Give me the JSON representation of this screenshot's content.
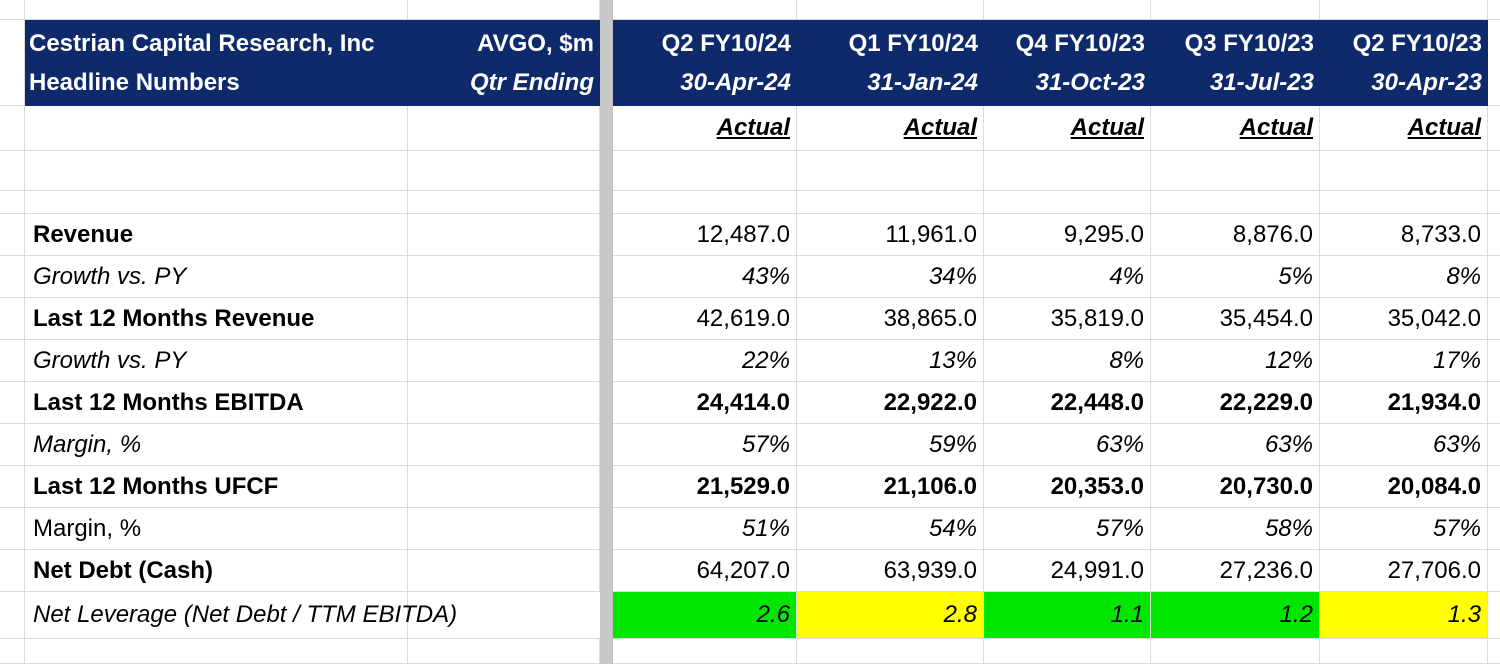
{
  "header": {
    "company": "Cestrian Capital Research, Inc",
    "subtitle": "Headline Numbers",
    "ticker": "AVGO, $m",
    "qtr_ending": "Qtr Ending"
  },
  "columns": [
    {
      "quarter": "Q2 FY10/24",
      "date": "30-Apr-24",
      "status": "Actual"
    },
    {
      "quarter": "Q1 FY10/24",
      "date": "31-Jan-24",
      "status": "Actual"
    },
    {
      "quarter": "Q4 FY10/23",
      "date": "31-Oct-23",
      "status": "Actual"
    },
    {
      "quarter": "Q3 FY10/23",
      "date": "31-Jul-23",
      "status": "Actual"
    },
    {
      "quarter": "Q2 FY10/23",
      "date": "30-Apr-23",
      "status": "Actual"
    }
  ],
  "rows": [
    {
      "label": "Revenue",
      "values": [
        "12,487.0",
        "11,961.0",
        "9,295.0",
        "8,876.0",
        "8,733.0"
      ]
    },
    {
      "label": "Growth vs. PY",
      "values": [
        "43%",
        "34%",
        "4%",
        "5%",
        "8%"
      ]
    },
    {
      "label": "Last 12 Months Revenue",
      "values": [
        "42,619.0",
        "38,865.0",
        "35,819.0",
        "35,454.0",
        "35,042.0"
      ]
    },
    {
      "label": "Growth vs. PY",
      "values": [
        "22%",
        "13%",
        "8%",
        "12%",
        "17%"
      ]
    },
    {
      "label": "Last 12 Months EBITDA",
      "values": [
        "24,414.0",
        "22,922.0",
        "22,448.0",
        "22,229.0",
        "21,934.0"
      ]
    },
    {
      "label": "Margin, %",
      "values": [
        "57%",
        "59%",
        "63%",
        "63%",
        "63%"
      ]
    },
    {
      "label": "Last 12 Months UFCF",
      "values": [
        "21,529.0",
        "21,106.0",
        "20,353.0",
        "20,730.0",
        "20,084.0"
      ]
    },
    {
      "label": "Margin, %",
      "values": [
        "51%",
        "54%",
        "57%",
        "58%",
        "57%"
      ]
    },
    {
      "label": "Net Debt (Cash)",
      "values": [
        "64,207.0",
        "63,939.0",
        "24,991.0",
        "27,236.0",
        "27,706.0"
      ]
    },
    {
      "label": "Net Leverage (Net Debt / TTM EBITDA)",
      "values": [
        "2.6",
        "2.8",
        "1.1",
        "1.2",
        "1.3"
      ]
    }
  ],
  "colors": {
    "header_bg": "#0f2a6b",
    "leverage_green": "#00e600",
    "leverage_yellow": "#ffff00"
  }
}
